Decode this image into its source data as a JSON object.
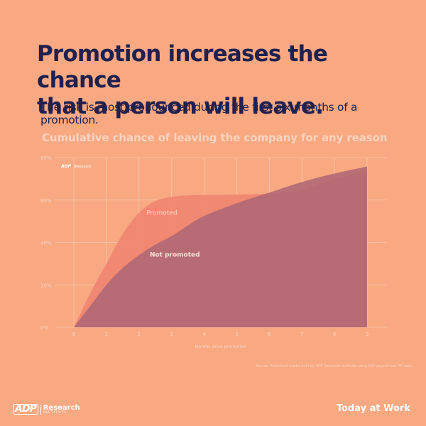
{
  "header": {
    "title_line1": "Promotion increases the chance",
    "title_line2": "that a person will leave.",
    "subtitle": "The risk is most pronounced during the first six months of a promotion."
  },
  "chart_data": {
    "type": "area",
    "title": "Cumulative chance of leaving the company for any reason",
    "xlabel": "Months since promotion",
    "ylabel": "",
    "x": [
      0,
      1,
      2,
      3,
      4,
      5,
      6,
      7,
      8,
      9
    ],
    "xlim": [
      0,
      9
    ],
    "ylim": [
      0,
      80
    ],
    "y_ticks": [
      0,
      20,
      40,
      60,
      80
    ],
    "y_tick_labels": [
      "0%",
      "20%",
      "40%",
      "60%",
      "80%"
    ],
    "x_tick_labels": [
      "0",
      "1",
      "2",
      "3",
      "4",
      "5",
      "6",
      "7",
      "8",
      "9"
    ],
    "grid": true,
    "series": [
      {
        "name": "Promoted",
        "color": "#f08771",
        "points": [
          [
            0,
            0
          ],
          [
            0.5,
            16
          ],
          [
            1,
            30
          ],
          [
            1.5,
            44
          ],
          [
            2,
            54
          ],
          [
            2.5,
            59.5
          ],
          [
            3,
            61.5
          ],
          [
            3.5,
            62.2
          ],
          [
            4,
            62.4
          ],
          [
            5,
            62.6
          ],
          [
            6,
            63
          ],
          [
            7,
            65
          ],
          [
            8,
            70
          ],
          [
            9,
            73.5
          ]
        ]
      },
      {
        "name": "Not promoted",
        "color": "#ae6675",
        "points": [
          [
            0,
            0
          ],
          [
            0.5,
            10
          ],
          [
            1,
            20
          ],
          [
            1.5,
            28
          ],
          [
            2,
            34
          ],
          [
            2.5,
            39
          ],
          [
            3,
            43
          ],
          [
            3.5,
            48
          ],
          [
            4,
            52.5
          ],
          [
            5,
            58.5
          ],
          [
            6,
            63.5
          ],
          [
            7,
            68.5
          ],
          [
            8,
            72.5
          ],
          [
            9,
            75.8
          ]
        ]
      }
    ],
    "watermark": "Research"
  },
  "source": "Source: Statistical model built by ADP Research Institute using ADP payroll and HR data",
  "footer": {
    "logo_mark": "ADP",
    "logo_text": "Research",
    "logo_subtext": "INSTITUTE",
    "brand": "Today at Work"
  }
}
